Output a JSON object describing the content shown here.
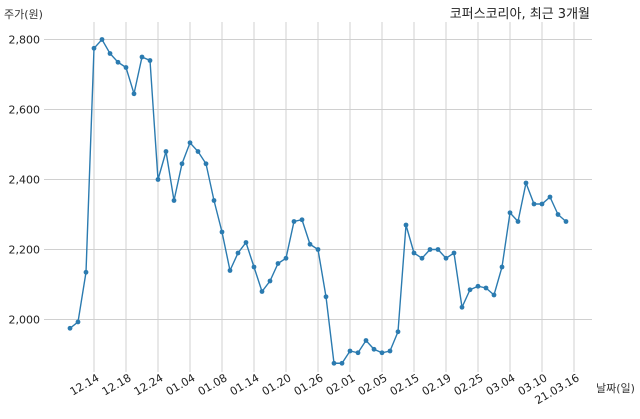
{
  "chart_data": {
    "type": "line",
    "title": "코퍼스코리아, 최근 3개월",
    "ylabel": "주가(원)",
    "xlabel": "날짜(일)",
    "ylim": [
      1850,
      2850
    ],
    "yticks": [
      2000,
      2200,
      2400,
      2600,
      2800
    ],
    "ytick_labels": [
      "2,000",
      "2,200",
      "2,400",
      "2,600",
      "2,800"
    ],
    "xtick_labels": [
      "12.14",
      "12.18",
      "12.24",
      "01.04",
      "01.08",
      "01.14",
      "01.20",
      "01.26",
      "02.01",
      "02.05",
      "02.15",
      "02.19",
      "02.25",
      "03.04",
      "03.10",
      "21.03.16"
    ],
    "xtick_indices": [
      3,
      7,
      11,
      15,
      19,
      23,
      27,
      31,
      35,
      39,
      43,
      47,
      51,
      55,
      59,
      63
    ],
    "grid": true,
    "color": "#2b7bb0",
    "series": [
      {
        "values": [
          1975,
          1993,
          2135,
          2775,
          2800,
          2760,
          2735,
          2720,
          2645,
          2750,
          2740,
          2400,
          2480,
          2340,
          2445,
          2505,
          2480,
          2445,
          2340,
          2250,
          2140,
          2190,
          2220,
          2150,
          2080,
          2110,
          2160,
          2175,
          2280,
          2285,
          2215,
          2200,
          2065,
          1875,
          1875,
          1910,
          1905,
          1940,
          1915,
          1905,
          1910,
          1965,
          2270,
          2190,
          2175,
          2200,
          2200,
          2175,
          2190,
          2035,
          2085,
          2095,
          2090,
          2070,
          2150,
          2305,
          2280,
          2390,
          2330,
          2330,
          2350,
          2300,
          2280
        ]
      }
    ]
  }
}
